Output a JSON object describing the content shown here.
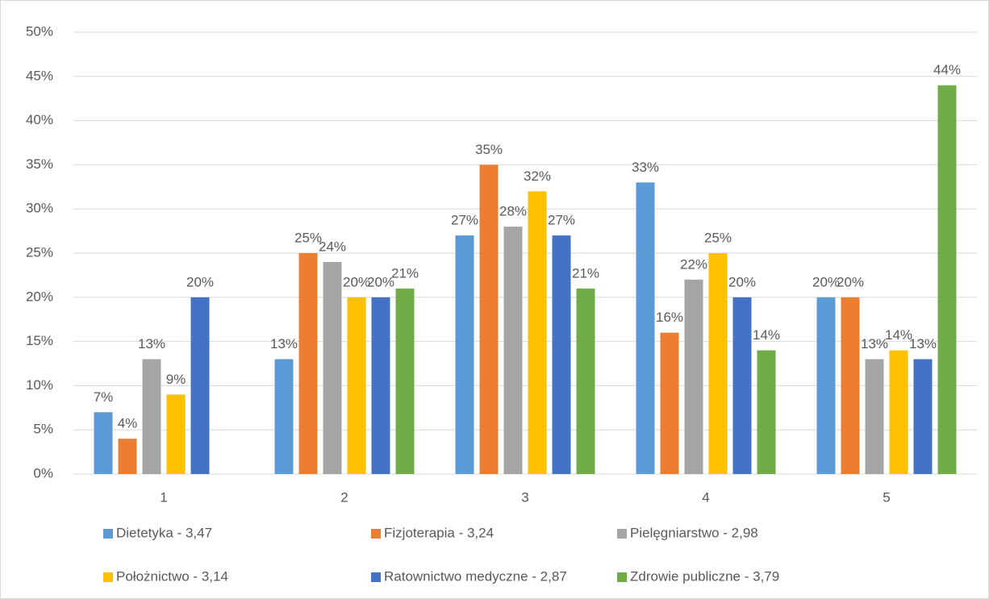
{
  "chart_data": {
    "type": "bar",
    "categories": [
      "1",
      "2",
      "3",
      "4",
      "5"
    ],
    "series": [
      {
        "name": "Dietetyka - 3,47",
        "color": "#5b9bd5",
        "values": [
          7,
          13,
          27,
          33,
          20
        ],
        "value_labels": [
          "7%",
          "13%",
          "27%",
          "33%",
          "20%"
        ]
      },
      {
        "name": "Fizjoterapia - 3,24",
        "color": "#ed7d31",
        "values": [
          4,
          25,
          35,
          16,
          20
        ],
        "value_labels": [
          "4%",
          "25%",
          "35%",
          "16%",
          "20%"
        ]
      },
      {
        "name": "Pielęgniarstwo - 2,98",
        "color": "#a5a5a5",
        "values": [
          13,
          24,
          28,
          22,
          13
        ],
        "value_labels": [
          "13%",
          "24%",
          "28%",
          "22%",
          "13%"
        ]
      },
      {
        "name": "Położnictwo - 3,14",
        "color": "#ffc000",
        "values": [
          9,
          20,
          32,
          25,
          14
        ],
        "value_labels": [
          "9%",
          "20%",
          "32%",
          "25%",
          "14%"
        ]
      },
      {
        "name": "Ratownictwo medyczne - 2,87",
        "color": "#4472c4",
        "values": [
          20,
          20,
          27,
          20,
          13
        ],
        "value_labels": [
          "20%",
          "20%",
          "27%",
          "20%",
          "13%"
        ]
      },
      {
        "name": "Zdrowie publiczne - 3,79",
        "color": "#70ad47",
        "values": [
          null,
          21,
          21,
          14,
          44
        ],
        "value_labels": [
          null,
          "21%",
          "21%",
          "14%",
          "44%"
        ]
      }
    ],
    "ylim": [
      0,
      50
    ],
    "yticks": [
      {
        "value": 0,
        "label": "0%"
      },
      {
        "value": 5,
        "label": "5%"
      },
      {
        "value": 10,
        "label": "10%"
      },
      {
        "value": 15,
        "label": "15%"
      },
      {
        "value": 20,
        "label": "20%"
      },
      {
        "value": 25,
        "label": "25%"
      },
      {
        "value": 30,
        "label": "30%"
      },
      {
        "value": 35,
        "label": "35%"
      },
      {
        "value": 40,
        "label": "40%"
      },
      {
        "value": 45,
        "label": "45%"
      },
      {
        "value": 50,
        "label": "50%"
      }
    ],
    "grid": true,
    "legend": "bottom"
  }
}
